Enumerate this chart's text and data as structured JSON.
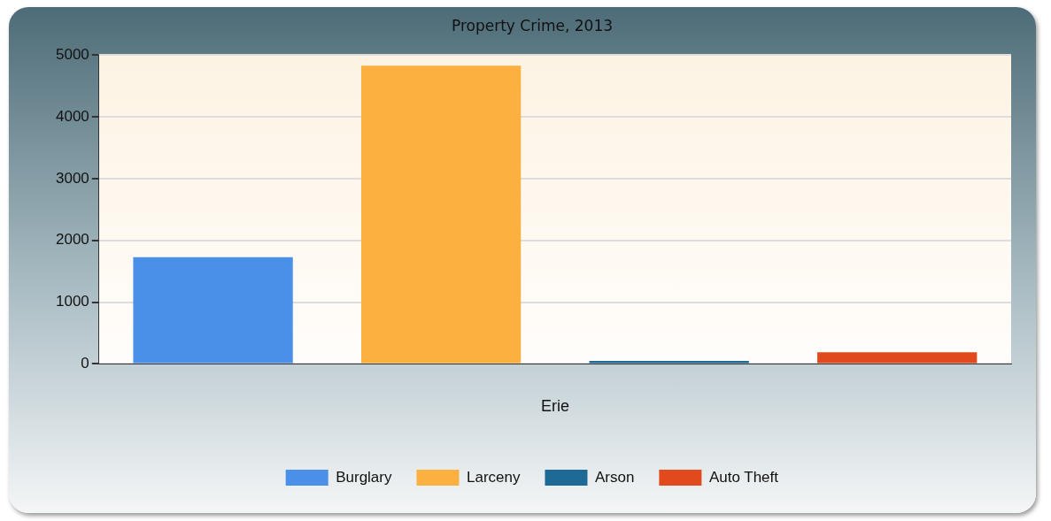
{
  "chart_data": {
    "type": "bar",
    "title": "Property Crime, 2013",
    "categories": [
      "Erie"
    ],
    "series": [
      {
        "name": "Burglary",
        "color": "#4a8fe8",
        "values": [
          1730
        ]
      },
      {
        "name": "Larceny",
        "color": "#fbb040",
        "values": [
          4830
        ]
      },
      {
        "name": "Arson",
        "color": "#1d6a96",
        "values": [
          50
        ]
      },
      {
        "name": "Auto Theft",
        "color": "#e04a1c",
        "values": [
          190
        ]
      }
    ],
    "ylim": [
      0,
      5000
    ],
    "yticks": [
      0,
      1000,
      2000,
      3000,
      4000,
      5000
    ],
    "grid": "y",
    "legend": "bottom"
  }
}
